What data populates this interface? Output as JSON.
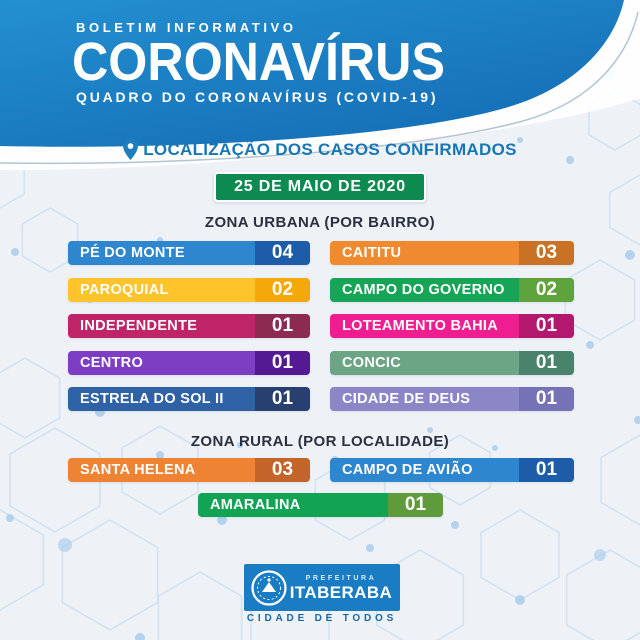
{
  "header": {
    "kicker": "BOLETIM INFORMATIVO",
    "title": "CORONAVÍRUS",
    "subtitle": "QUADRO DO CORONAVÍRUS (COVID-19)"
  },
  "location_title": "LOCALIZAÇÃO DOS CASOS CONFIRMADOS",
  "date_badge": "25 DE MAIO DE 2020",
  "icons": {
    "location_pin": "map-pin",
    "city_seal": "itaberaba-municipal-seal"
  },
  "urban": {
    "heading": "ZONA URBANA (POR BAIRRO)",
    "left": [
      {
        "label": "PÉ DO MONTE",
        "value": "04",
        "bg": "#2e86cf",
        "value_bg": "#1d5ca8"
      },
      {
        "label": "PAROQUIAL",
        "value": "02",
        "bg": "#ffc32b",
        "value_bg": "#f5a80a"
      },
      {
        "label": "INDEPENDENTE",
        "value": "01",
        "bg": "#bf2368",
        "value_bg": "#8c2a52"
      },
      {
        "label": "CENTRO",
        "value": "01",
        "bg": "#7e3ec4",
        "value_bg": "#531a93"
      },
      {
        "label": "ESTRELA DO SOL II",
        "value": "01",
        "bg": "#2f61a5",
        "value_bg": "#27406f"
      }
    ],
    "right": [
      {
        "label": "CAITITU",
        "value": "03",
        "bg": "#ef8b2e",
        "value_bg": "#c97226"
      },
      {
        "label": "CAMPO DO GOVERNO",
        "value": "02",
        "bg": "#16a556",
        "value_bg": "#5fa33c"
      },
      {
        "label": "LOTEAMENTO BAHIA",
        "value": "01",
        "bg": "#ee1e91",
        "value_bg": "#b2186e"
      },
      {
        "label": "CONCIC",
        "value": "01",
        "bg": "#6ca585",
        "value_bg": "#49836c"
      },
      {
        "label": "CIDADE DE DEUS",
        "value": "01",
        "bg": "#8b87c6",
        "value_bg": "#7572b5"
      }
    ]
  },
  "rural": {
    "heading": "ZONA RURAL (POR LOCALIDADE)",
    "left": [
      {
        "label": "SANTA HELENA",
        "value": "03",
        "bg": "#ee8433",
        "value_bg": "#c3652a"
      }
    ],
    "right": [
      {
        "label": "CAMPO DE AVIÃO",
        "value": "01",
        "bg": "#2e86cf",
        "value_bg": "#1d5ca8"
      }
    ],
    "center": [
      {
        "label": "AMARALINA",
        "value": "01",
        "bg": "#12a355",
        "value_bg": "#5f9b3d"
      }
    ]
  },
  "footer": {
    "org_small": "PREFEITURA",
    "org_name": "ITABERABA",
    "slogan": "CIDADE DE TODOS"
  },
  "colors": {
    "header_blue": "#1c7ec4",
    "accent_blue": "#1777b6",
    "date_green": "#0d8a4f",
    "heading_dark": "#2b3040",
    "slogan_blue": "#1a67a3",
    "background": "#eef2f7"
  },
  "chart_data": {
    "type": "table",
    "title": "LOCALIZAÇÃO DOS CASOS CONFIRMADOS",
    "subtitle": "25 DE MAIO DE 2020",
    "groups": [
      {
        "name": "ZONA URBANA (POR BAIRRO)",
        "categories": [
          "PÉ DO MONTE",
          "CAITITU",
          "PAROQUIAL",
          "CAMPO DO GOVERNO",
          "INDEPENDENTE",
          "LOTEAMENTO BAHIA",
          "CENTRO",
          "CONCIC",
          "ESTRELA DO SOL II",
          "CIDADE DE DEUS"
        ],
        "values": [
          4,
          3,
          2,
          2,
          1,
          1,
          1,
          1,
          1,
          1
        ]
      },
      {
        "name": "ZONA RURAL (POR LOCALIDADE)",
        "categories": [
          "SANTA HELENA",
          "CAMPO DE AVIÃO",
          "AMARALINA"
        ],
        "values": [
          3,
          1,
          1
        ]
      }
    ]
  }
}
